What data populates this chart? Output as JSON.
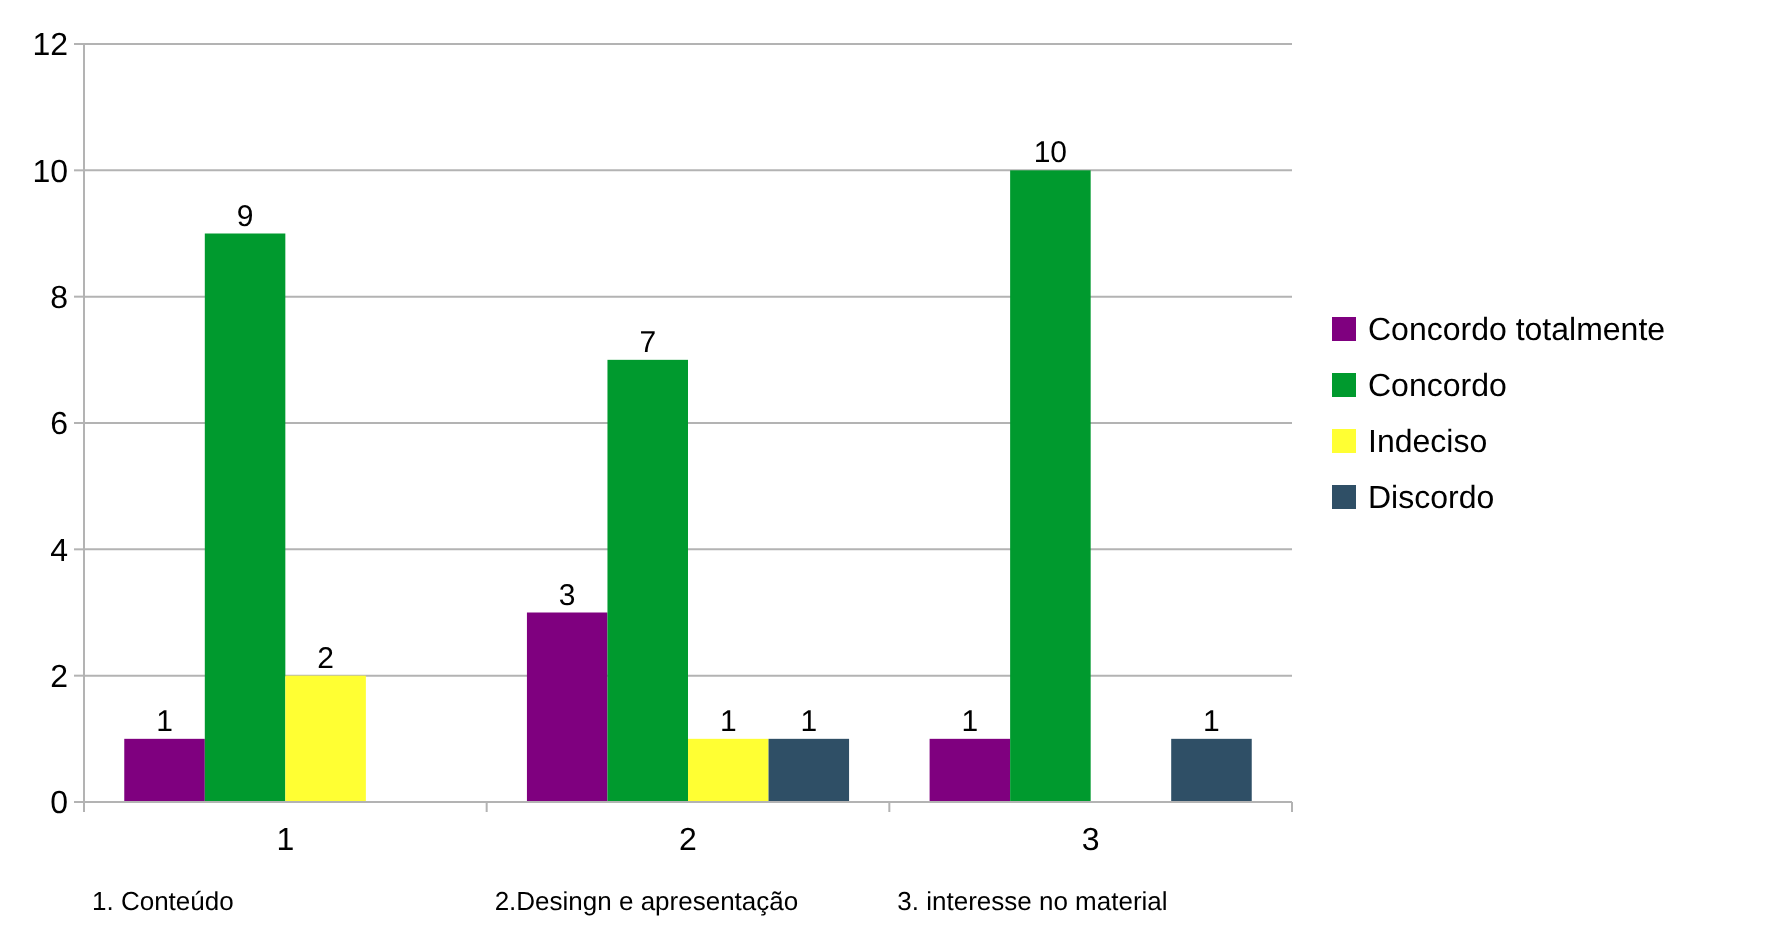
{
  "chart_data": {
    "type": "bar",
    "categories": [
      "1",
      "2",
      "3"
    ],
    "series": [
      {
        "name": "Concordo totalmente",
        "color": "#7f007f",
        "values": [
          1,
          3,
          1
        ]
      },
      {
        "name": "Concordo",
        "color": "#009a2e",
        "values": [
          9,
          7,
          10
        ]
      },
      {
        "name": "Indeciso",
        "color": "#ffff33",
        "values": [
          2,
          1,
          null
        ]
      },
      {
        "name": "Discordo",
        "color": "#2f4f66",
        "values": [
          null,
          1,
          1
        ]
      }
    ],
    "ylim": [
      0,
      12
    ],
    "yticks": [
      0,
      2,
      4,
      6,
      8,
      10,
      12
    ],
    "grid": "y",
    "legend": "right",
    "data_labels": true,
    "annotations": [
      "1. Conteúdo",
      "2.Desingn e apresentação",
      "3. interesse no material"
    ]
  }
}
